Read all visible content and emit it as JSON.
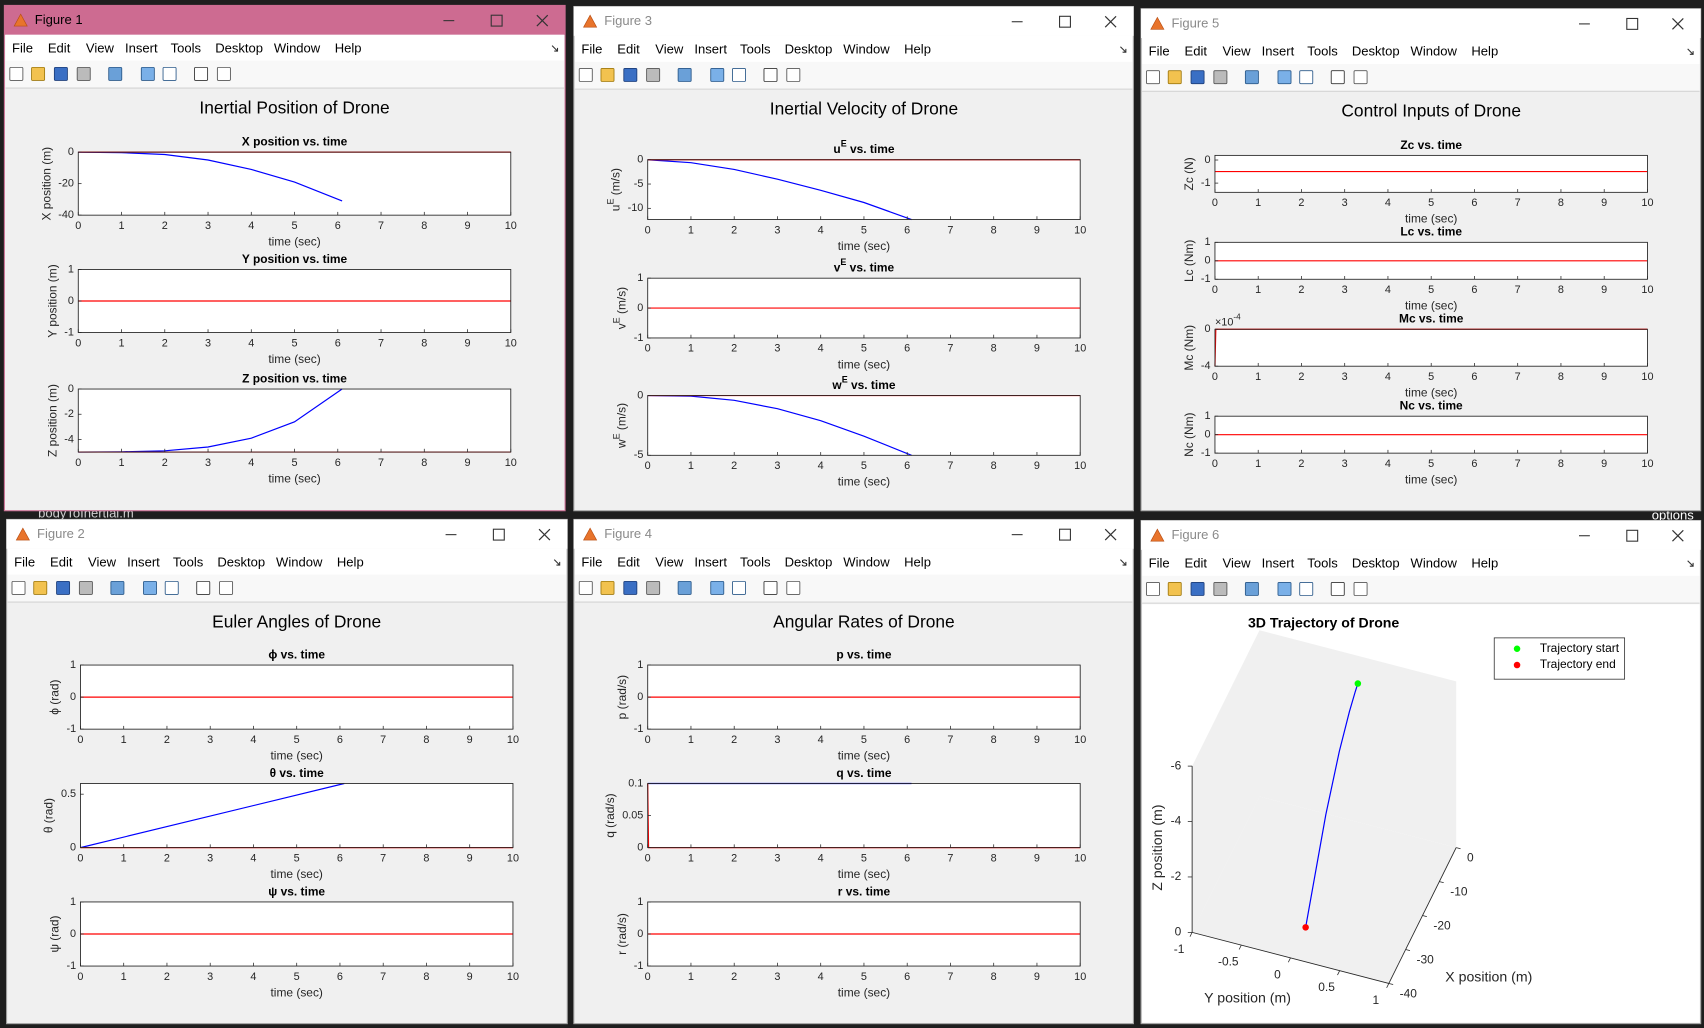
{
  "menu": [
    "File",
    "Edit",
    "View",
    "Insert",
    "Tools",
    "Desktop",
    "Window",
    "Help"
  ],
  "background": {
    "texts": [
      "bodyToInertial.m",
      "options"
    ]
  },
  "windows": [
    {
      "title": "Figure 1",
      "active": true,
      "figure": {
        "type": "subplots",
        "title": "Inertial Position of Drone",
        "axes": [
          {
            "title": "X position vs. time",
            "xlabel": "time (sec)",
            "ylabel": "X position (m)",
            "xlim": [
              0,
              10
            ],
            "ylim": [
              -40,
              0
            ],
            "xticks": [
              0,
              1,
              2,
              3,
              4,
              5,
              6,
              7,
              8,
              9,
              10
            ],
            "yticks": [
              -40,
              -20,
              0
            ],
            "series": [
              {
                "color": "#0000ff",
                "x": [
                  0,
                  1,
                  2,
                  3,
                  4,
                  5,
                  6.1
                ],
                "values": [
                  0,
                  -0.3,
                  -1.5,
                  -5,
                  -11,
                  -19,
                  -31
                ]
              },
              {
                "color": "#ff0000",
                "x": [
                  0,
                  10
                ],
                "values": [
                  0,
                  0
                ]
              }
            ]
          },
          {
            "title": "Y position vs. time",
            "xlabel": "time (sec)",
            "ylabel": "Y position (m)",
            "xlim": [
              0,
              10
            ],
            "ylim": [
              -1,
              1
            ],
            "xticks": [
              0,
              1,
              2,
              3,
              4,
              5,
              6,
              7,
              8,
              9,
              10
            ],
            "yticks": [
              -1,
              0,
              1
            ],
            "series": [
              {
                "color": "#ff0000",
                "x": [
                  0,
                  10
                ],
                "values": [
                  0,
                  0
                ]
              }
            ]
          },
          {
            "title": "Z position vs. time",
            "xlabel": "time (sec)",
            "ylabel": "Z position (m)",
            "xlim": [
              0,
              10
            ],
            "ylim": [
              -5,
              0
            ],
            "xticks": [
              0,
              1,
              2,
              3,
              4,
              5,
              6,
              7,
              8,
              9,
              10
            ],
            "yticks": [
              -4,
              -2,
              0
            ],
            "series": [
              {
                "color": "#0000ff",
                "x": [
                  0,
                  1,
                  2,
                  3,
                  4,
                  5,
                  6.1
                ],
                "values": [
                  -5,
                  -4.98,
                  -4.9,
                  -4.6,
                  -3.9,
                  -2.6,
                  0
                ]
              },
              {
                "color": "#ff0000",
                "x": [
                  0,
                  10
                ],
                "values": [
                  -5,
                  -5
                ]
              }
            ]
          }
        ]
      }
    },
    {
      "title": "Figure 3",
      "active": false,
      "figure": {
        "type": "subplots",
        "title": "Inertial Velocity of Drone",
        "axes": [
          {
            "title": {
              "base": "u",
              "sup": "E",
              "text": " vs. time"
            },
            "xlabel": "time (sec)",
            "ylabel": {
              "base": "u",
              "sup": "E",
              "text": " (m/s)"
            },
            "xlim": [
              0,
              10
            ],
            "ylim": [
              -12.3,
              0
            ],
            "xticks": [
              0,
              1,
              2,
              3,
              4,
              5,
              6,
              7,
              8,
              9,
              10
            ],
            "yticks": [
              -10,
              -5,
              0
            ],
            "series": [
              {
                "color": "#0000ff",
                "x": [
                  0,
                  1,
                  2,
                  3,
                  4,
                  5,
                  6.1
                ],
                "values": [
                  0,
                  -0.6,
                  -2,
                  -4,
                  -6.3,
                  -8.8,
                  -12.3
                ]
              },
              {
                "color": "#ff0000",
                "x": [
                  0,
                  10
                ],
                "values": [
                  0,
                  0
                ]
              }
            ]
          },
          {
            "title": {
              "base": "v",
              "sup": "E",
              "text": " vs. time"
            },
            "xlabel": "time (sec)",
            "ylabel": {
              "base": "v",
              "sup": "E",
              "text": " (m/s)"
            },
            "xlim": [
              0,
              10
            ],
            "ylim": [
              -1,
              1
            ],
            "xticks": [
              0,
              1,
              2,
              3,
              4,
              5,
              6,
              7,
              8,
              9,
              10
            ],
            "yticks": [
              -1,
              0,
              1
            ],
            "series": [
              {
                "color": "#ff0000",
                "x": [
                  0,
                  10
                ],
                "values": [
                  0,
                  0
                ]
              }
            ]
          },
          {
            "title": {
              "base": "w",
              "sup": "E",
              "text": " vs. time"
            },
            "xlabel": "time (sec)",
            "ylabel": {
              "base": "w",
              "sup": "E",
              "text": " (m/s)"
            },
            "xlim": [
              0,
              10
            ],
            "ylim": [
              -5,
              0
            ],
            "xticks": [
              0,
              1,
              2,
              3,
              4,
              5,
              6,
              7,
              8,
              9,
              10
            ],
            "yticks": [
              -5,
              0
            ],
            "series": [
              {
                "color": "#0000ff",
                "x": [
                  0,
                  1,
                  2,
                  3,
                  4,
                  5,
                  6.1
                ],
                "values": [
                  0,
                  -0.05,
                  -0.4,
                  -1.1,
                  -2.1,
                  -3.4,
                  -5
                ]
              },
              {
                "color": "#ff0000",
                "x": [
                  0,
                  10
                ],
                "values": [
                  0,
                  0
                ]
              }
            ]
          }
        ]
      }
    },
    {
      "title": "Figure 5",
      "active": false,
      "figure": {
        "type": "subplots",
        "title": "Control Inputs of Drone",
        "axes": [
          {
            "title": "Zc vs. time",
            "xlabel": "time (sec)",
            "ylabel": "Zc (N)",
            "xlim": [
              0,
              10
            ],
            "ylim": [
              -1.4,
              0.2
            ],
            "xticks": [
              0,
              1,
              2,
              3,
              4,
              5,
              6,
              7,
              8,
              9,
              10
            ],
            "yticks": [
              -1,
              0
            ],
            "series": [
              {
                "color": "#ff0000",
                "x": [
                  0,
                  10
                ],
                "values": [
                  -0.5,
                  -0.5
                ]
              }
            ]
          },
          {
            "title": "Lc vs. time",
            "xlabel": "time (sec)",
            "ylabel": "Lc (Nm)",
            "xlim": [
              0,
              10
            ],
            "ylim": [
              -1,
              1
            ],
            "xticks": [
              0,
              1,
              2,
              3,
              4,
              5,
              6,
              7,
              8,
              9,
              10
            ],
            "yticks": [
              -1,
              0,
              1
            ],
            "series": [
              {
                "color": "#ff0000",
                "x": [
                  0,
                  10
                ],
                "values": [
                  0,
                  0
                ]
              }
            ]
          },
          {
            "title": "Mc vs. time",
            "xlabel": "time (sec)",
            "ylabel": "Mc (Nm)",
            "exponent": {
              "base": "×10",
              "sup": "-4"
            },
            "xlim": [
              0,
              10
            ],
            "ylim": [
              -4,
              0
            ],
            "xticks": [
              0,
              1,
              2,
              3,
              4,
              5,
              6,
              7,
              8,
              9,
              10
            ],
            "yticks": [
              -4,
              0
            ],
            "series": [
              {
                "color": "#ff0000",
                "x": [
                  0,
                  0.02,
                  10
                ],
                "values": [
                  -4,
                  0,
                  0
                ]
              }
            ]
          },
          {
            "title": "Nc vs. time",
            "xlabel": "time (sec)",
            "ylabel": "Nc (Nm)",
            "xlim": [
              0,
              10
            ],
            "ylim": [
              -1,
              1
            ],
            "xticks": [
              0,
              1,
              2,
              3,
              4,
              5,
              6,
              7,
              8,
              9,
              10
            ],
            "yticks": [
              -1,
              0,
              1
            ],
            "series": [
              {
                "color": "#ff0000",
                "x": [
                  0,
                  10
                ],
                "values": [
                  0,
                  0
                ]
              }
            ]
          }
        ]
      }
    },
    {
      "title": "Figure 2",
      "active": false,
      "figure": {
        "type": "subplots",
        "title": "Euler Angles of Drone",
        "axes": [
          {
            "title": "ϕ vs. time",
            "xlabel": "time (sec)",
            "ylabel": "ϕ (rad)",
            "xlim": [
              0,
              10
            ],
            "ylim": [
              -1,
              1
            ],
            "xticks": [
              0,
              1,
              2,
              3,
              4,
              5,
              6,
              7,
              8,
              9,
              10
            ],
            "yticks": [
              -1,
              0,
              1
            ],
            "series": [
              {
                "color": "#ff0000",
                "x": [
                  0,
                  10
                ],
                "values": [
                  0,
                  0
                ]
              }
            ]
          },
          {
            "title": "θ vs. time",
            "xlabel": "time (sec)",
            "ylabel": "θ (rad)",
            "xlim": [
              0,
              10
            ],
            "ylim": [
              0,
              0.6
            ],
            "xticks": [
              0,
              1,
              2,
              3,
              4,
              5,
              6,
              7,
              8,
              9,
              10
            ],
            "yticks": [
              0,
              0.5
            ],
            "series": [
              {
                "color": "#0000ff",
                "x": [
                  0,
                  6.1
                ],
                "values": [
                  0,
                  0.6
                ]
              },
              {
                "color": "#ff0000",
                "x": [
                  0,
                  10
                ],
                "values": [
                  0,
                  0
                ]
              }
            ]
          },
          {
            "title": "ψ vs. time",
            "xlabel": "time (sec)",
            "ylabel": "ψ (rad)",
            "xlim": [
              0,
              10
            ],
            "ylim": [
              -1,
              1
            ],
            "xticks": [
              0,
              1,
              2,
              3,
              4,
              5,
              6,
              7,
              8,
              9,
              10
            ],
            "yticks": [
              -1,
              0,
              1
            ],
            "series": [
              {
                "color": "#ff0000",
                "x": [
                  0,
                  10
                ],
                "values": [
                  0,
                  0
                ]
              }
            ]
          }
        ]
      }
    },
    {
      "title": "Figure 4",
      "active": false,
      "figure": {
        "type": "subplots",
        "title": "Angular Rates of Drone",
        "axes": [
          {
            "title": "p vs. time",
            "xlabel": "time (sec)",
            "ylabel": "p (rad/s)",
            "xlim": [
              0,
              10
            ],
            "ylim": [
              -1,
              1
            ],
            "xticks": [
              0,
              1,
              2,
              3,
              4,
              5,
              6,
              7,
              8,
              9,
              10
            ],
            "yticks": [
              -1,
              0,
              1
            ],
            "series": [
              {
                "color": "#ff0000",
                "x": [
                  0,
                  10
                ],
                "values": [
                  0,
                  0
                ]
              }
            ]
          },
          {
            "title": "q vs. time",
            "xlabel": "time (sec)",
            "ylabel": "q (rad/s)",
            "xlim": [
              0,
              10
            ],
            "ylim": [
              0,
              0.1
            ],
            "xticks": [
              0,
              1,
              2,
              3,
              4,
              5,
              6,
              7,
              8,
              9,
              10
            ],
            "yticks": [
              0,
              0.05,
              0.1
            ],
            "series": [
              {
                "color": "#0000ff",
                "x": [
                  0,
                  6.1
                ],
                "values": [
                  0.1,
                  0.1
                ]
              },
              {
                "color": "#ff0000",
                "x": [
                  0,
                  0.02,
                  10
                ],
                "values": [
                  0.1,
                  0,
                  0
                ]
              }
            ]
          },
          {
            "title": "r vs. time",
            "xlabel": "time (sec)",
            "ylabel": "r (rad/s)",
            "xlim": [
              0,
              10
            ],
            "ylim": [
              -1,
              1
            ],
            "xticks": [
              0,
              1,
              2,
              3,
              4,
              5,
              6,
              7,
              8,
              9,
              10
            ],
            "yticks": [
              -1,
              0,
              1
            ],
            "series": [
              {
                "color": "#ff0000",
                "x": [
                  0,
                  10
                ],
                "values": [
                  0,
                  0
                ]
              }
            ]
          }
        ]
      }
    },
    {
      "title": "Figure 6",
      "active": false,
      "figure": {
        "type": "line3d",
        "title": "3D Trajectory of Drone",
        "xlabel": "X position (m)",
        "ylabel": "Y position (m)",
        "zlabel": "Z position (m)",
        "xlim": [
          -40,
          0
        ],
        "ylim": [
          -1,
          1
        ],
        "zlim": [
          -6,
          0
        ],
        "zdir": "reverse",
        "xticks": [
          -40,
          -30,
          -20,
          -10,
          0
        ],
        "yticks": [
          -1,
          -0.5,
          0,
          0.5,
          1
        ],
        "zticks": [
          -6,
          -4,
          -2,
          0
        ],
        "legend": "northeast",
        "trajectory": {
          "color": "#0000ff",
          "x": [
            0,
            -0.3,
            -1.5,
            -5,
            -11,
            -19,
            -31
          ],
          "y": [
            0,
            0,
            0,
            0,
            0,
            0,
            0
          ],
          "z": [
            -5,
            -4.98,
            -4.9,
            -4.6,
            -3.9,
            -2.6,
            0
          ]
        },
        "markers": [
          {
            "name": "Trajectory start",
            "color": "#00ff00",
            "x": 0,
            "y": 0,
            "z": -5
          },
          {
            "name": "Trajectory end",
            "color": "#ff0000",
            "x": -31,
            "y": 0,
            "z": 0
          }
        ]
      }
    }
  ]
}
